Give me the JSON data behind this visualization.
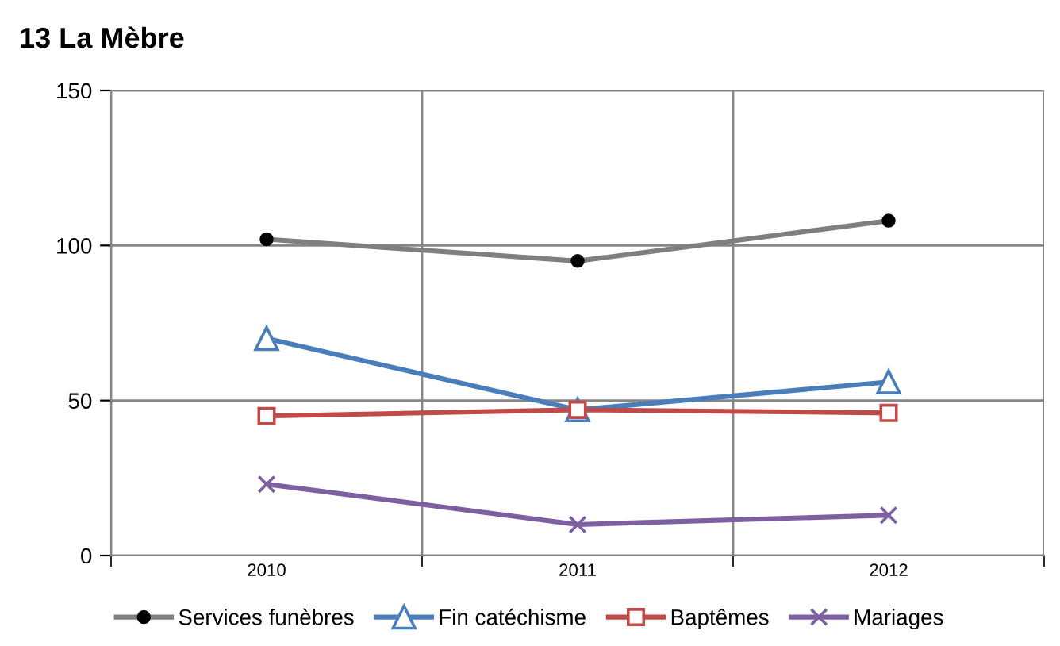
{
  "chart_data": {
    "type": "line",
    "title": "13 La Mèbre",
    "categories": [
      "2010",
      "2011",
      "2012"
    ],
    "series": [
      {
        "name": "Services funèbres",
        "color": "#7f7f7f",
        "marker": "circle",
        "values": [
          102,
          95,
          108
        ]
      },
      {
        "name": "Fin catéchisme",
        "color": "#4a7ebb",
        "marker": "triangle",
        "values": [
          70,
          47,
          56
        ]
      },
      {
        "name": "Baptêmes",
        "color": "#be4b48",
        "marker": "square",
        "values": [
          45,
          47,
          46
        ]
      },
      {
        "name": "Mariages",
        "color": "#7d60a0",
        "marker": "cross",
        "values": [
          23,
          10,
          13
        ]
      }
    ],
    "ylim": [
      0,
      150
    ],
    "yticks": [
      0,
      50,
      100,
      150
    ],
    "grid": true,
    "legend": "bottom"
  }
}
